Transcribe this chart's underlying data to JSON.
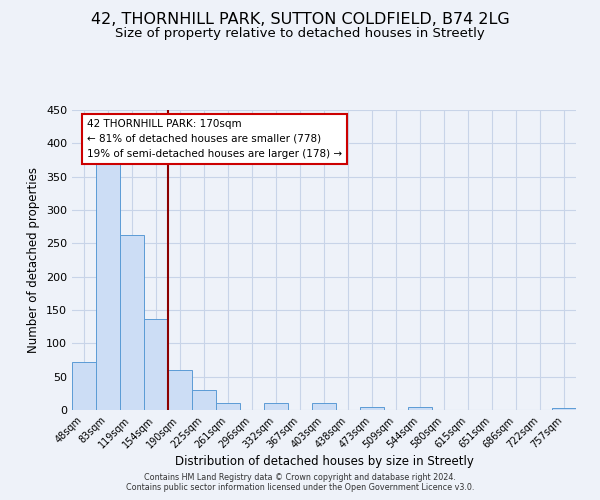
{
  "title": "42, THORNHILL PARK, SUTTON COLDFIELD, B74 2LG",
  "subtitle": "Size of property relative to detached houses in Streetly",
  "xlabel": "Distribution of detached houses by size in Streetly",
  "ylabel": "Number of detached properties",
  "bar_labels": [
    "48sqm",
    "83sqm",
    "119sqm",
    "154sqm",
    "190sqm",
    "225sqm",
    "261sqm",
    "296sqm",
    "332sqm",
    "367sqm",
    "403sqm",
    "438sqm",
    "473sqm",
    "509sqm",
    "544sqm",
    "580sqm",
    "615sqm",
    "651sqm",
    "686sqm",
    "722sqm",
    "757sqm"
  ],
  "bar_values": [
    72,
    378,
    262,
    137,
    60,
    30,
    10,
    0,
    10,
    0,
    10,
    0,
    5,
    0,
    5,
    0,
    0,
    0,
    0,
    0,
    3
  ],
  "bar_color": "#ccddf5",
  "bar_edge_color": "#5b9bd5",
  "ylim": [
    0,
    450
  ],
  "yticks": [
    0,
    50,
    100,
    150,
    200,
    250,
    300,
    350,
    400,
    450
  ],
  "vline_x": 4.0,
  "vline_color": "#8b0000",
  "annotation_text": "42 THORNHILL PARK: 170sqm\n← 81% of detached houses are smaller (778)\n19% of semi-detached houses are larger (178) →",
  "annotation_box_color": "#ffffff",
  "annotation_box_edge": "#cc0000",
  "footer1": "Contains HM Land Registry data © Crown copyright and database right 2024.",
  "footer2": "Contains public sector information licensed under the Open Government Licence v3.0.",
  "bg_color": "#eef2f9",
  "plot_bg_color": "#eef2f9",
  "grid_color": "#c8d4e8",
  "title_fontsize": 11.5,
  "subtitle_fontsize": 9.5,
  "bar_width": 1.0
}
